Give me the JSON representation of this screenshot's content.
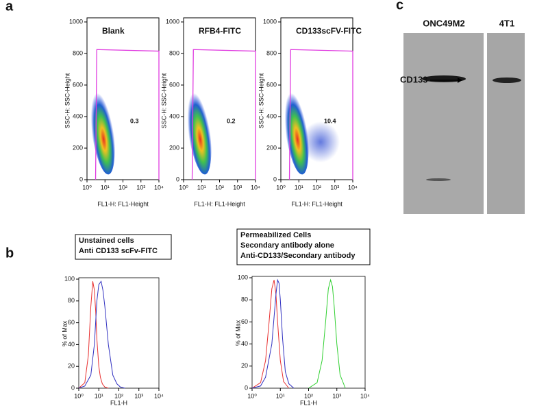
{
  "panel_labels": [
    "a",
    "b",
    "c"
  ],
  "chart_data": [
    {
      "type": "flow",
      "title": "Blank",
      "annotation": "0.3",
      "xlabel": "FL1-H: FL1-Height",
      "ylabel": "SSC-H: SSC-Height",
      "log_x": true,
      "xlim": [
        1,
        10000
      ],
      "ylim": [
        0,
        1000
      ],
      "xticks": [
        {
          "value": 1,
          "label": "10⁰"
        },
        {
          "value": 10,
          "label": "10¹"
        },
        {
          "value": 100,
          "label": "10²"
        },
        {
          "value": 1000,
          "label": "10³"
        },
        {
          "value": 10000,
          "label": "10⁴"
        }
      ],
      "yticks": [
        0,
        200,
        400,
        600,
        800,
        1000
      ],
      "gate": {
        "x": [
          3,
          3.5,
          10000,
          10000
        ],
        "y": [
          0,
          825,
          815,
          0
        ],
        "color": "#e03ce0"
      }
    },
    {
      "type": "flow",
      "title": "RFB4-FITC",
      "annotation": "0.2",
      "xlabel": "FL1-H: FL1-Height",
      "ylabel": "SSC-H: SSC-Height",
      "log_x": true,
      "xlim": [
        1,
        10000
      ],
      "ylim": [
        0,
        1000
      ],
      "xticks": [
        {
          "value": 1,
          "label": "10⁰"
        },
        {
          "value": 10,
          "label": "10¹"
        },
        {
          "value": 100,
          "label": "10²"
        },
        {
          "value": 1000,
          "label": "10³"
        },
        {
          "value": 10000,
          "label": "10⁴"
        }
      ],
      "yticks": [
        0,
        200,
        400,
        600,
        800,
        1000
      ],
      "gate": {
        "x": [
          3,
          3.5,
          10000,
          10000
        ],
        "y": [
          0,
          825,
          815,
          0
        ],
        "color": "#e03ce0"
      }
    },
    {
      "type": "flow",
      "title": "CD133scFV-FITC",
      "annotation": "10.4",
      "xlabel": "FL1-H: FL1-Height",
      "ylabel": "SSC-H: SSC-Height",
      "log_x": true,
      "xlim": [
        1,
        10000
      ],
      "ylim": [
        0,
        1000
      ],
      "xticks": [
        {
          "value": 1,
          "label": "10⁰"
        },
        {
          "value": 10,
          "label": "10¹"
        },
        {
          "value": 100,
          "label": "10²"
        },
        {
          "value": 1000,
          "label": "10³"
        },
        {
          "value": 10000,
          "label": "10⁴"
        }
      ],
      "yticks": [
        0,
        200,
        400,
        600,
        800,
        1000
      ],
      "gate": {
        "x": [
          3,
          3.5,
          10000,
          10000
        ],
        "y": [
          0,
          825,
          815,
          0
        ],
        "color": "#e03ce0"
      }
    },
    {
      "type": "line",
      "xlabel": "FL1-H",
      "ylabel": "% of Max",
      "log_x": true,
      "xlim": [
        1,
        10000
      ],
      "ylim": [
        0,
        100
      ],
      "xticks": [
        {
          "value": 1,
          "label": "10⁰"
        },
        {
          "value": 10,
          "label": "10¹"
        },
        {
          "value": 100,
          "label": "10²"
        },
        {
          "value": 1000,
          "label": "10³"
        },
        {
          "value": 10000,
          "label": "10⁴"
        }
      ],
      "yticks": [
        0,
        20,
        40,
        60,
        80,
        100
      ],
      "series": [
        {
          "name": "Unstained cells",
          "color": "#e83030",
          "legend_color": "#000000",
          "x": [
            1,
            2,
            3,
            4,
            5,
            6,
            7,
            8,
            10,
            12,
            15,
            20,
            30
          ],
          "values": [
            0,
            5,
            30,
            75,
            98,
            90,
            70,
            45,
            20,
            10,
            4,
            1,
            0
          ]
        },
        {
          "name": "Anti CD133 scFv-FITC",
          "color": "#3030c0",
          "legend_color": "#2020a0",
          "x": [
            1,
            2,
            4,
            6,
            8,
            10,
            13,
            16,
            20,
            30,
            50,
            80,
            120,
            200
          ],
          "values": [
            0,
            2,
            12,
            40,
            80,
            95,
            98,
            90,
            75,
            40,
            12,
            4,
            1,
            0
          ]
        }
      ]
    },
    {
      "type": "line",
      "xlabel": "FL1-H",
      "ylabel": "% of Max",
      "log_x": true,
      "xlim": [
        1,
        10000
      ],
      "ylim": [
        0,
        100
      ],
      "xticks": [
        {
          "value": 1,
          "label": "10⁰"
        },
        {
          "value": 10,
          "label": "10¹"
        },
        {
          "value": 100,
          "label": "10²"
        },
        {
          "value": 1000,
          "label": "10³"
        },
        {
          "value": 10000,
          "label": "10⁴"
        }
      ],
      "yticks": [
        0,
        20,
        40,
        60,
        80,
        100
      ],
      "series": [
        {
          "name": "Permeabilized Cells",
          "color": "#e83030",
          "legend_color": "#d02020",
          "x": [
            1,
            2,
            3,
            4,
            5,
            6,
            7,
            8,
            10,
            13,
            20
          ],
          "values": [
            0,
            5,
            25,
            60,
            90,
            98,
            85,
            60,
            25,
            6,
            0
          ]
        },
        {
          "name": "Secondary antibody alone",
          "color": "#3030c0",
          "legend_color": "#2020a0",
          "x": [
            1,
            2,
            3,
            5,
            7,
            8,
            9,
            10,
            12,
            15,
            20,
            30
          ],
          "values": [
            0,
            2,
            10,
            40,
            85,
            98,
            95,
            80,
            45,
            15,
            4,
            0
          ]
        },
        {
          "name": "Anti-CD133/Secondary antibody",
          "color": "#30d030",
          "legend_color": "#20a020",
          "x": [
            100,
            200,
            300,
            400,
            500,
            600,
            700,
            800,
            1000,
            1300,
            2000
          ],
          "values": [
            0,
            5,
            25,
            60,
            90,
            98,
            92,
            75,
            40,
            12,
            0
          ]
        }
      ]
    }
  ],
  "blot": {
    "lanes": [
      "ONC49M2",
      "4T1"
    ],
    "band_label": "CD133"
  }
}
